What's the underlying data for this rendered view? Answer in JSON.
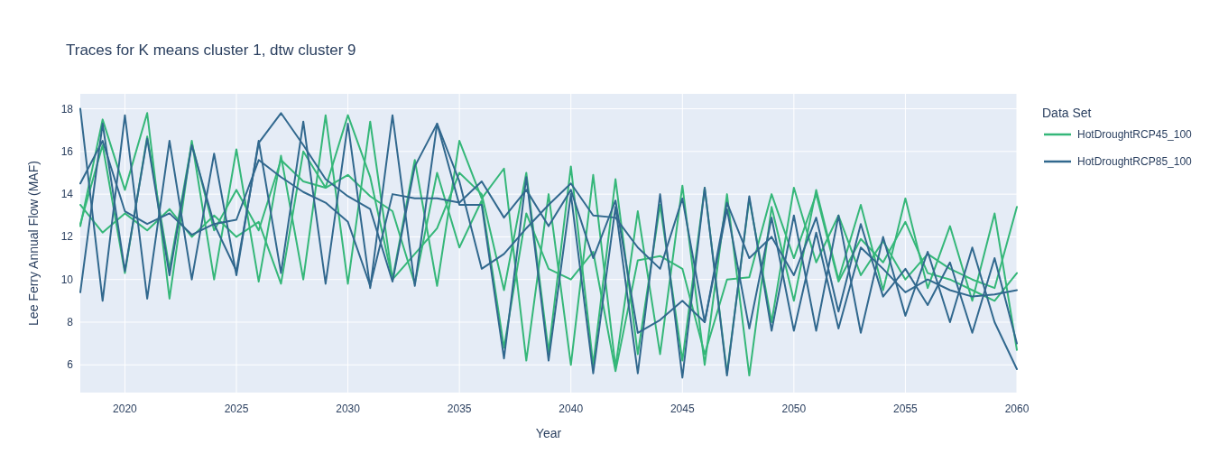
{
  "chart_data": {
    "type": "line",
    "title": "Traces for K means cluster 1, dtw cluster 9",
    "xlabel": "Year",
    "ylabel": "Lee Ferry Annual Flow (MAF)",
    "legend_title": "Data Set",
    "legend": "top right",
    "grid": true,
    "marker": "none",
    "line_style": "solid",
    "x": [
      2018,
      2019,
      2020,
      2021,
      2022,
      2023,
      2024,
      2025,
      2026,
      2027,
      2028,
      2029,
      2030,
      2031,
      2032,
      2033,
      2034,
      2035,
      2036,
      2037,
      2038,
      2039,
      2040,
      2041,
      2042,
      2043,
      2044,
      2045,
      2046,
      2047,
      2048,
      2049,
      2050,
      2051,
      2052,
      2053,
      2054,
      2055,
      2056,
      2057,
      2058,
      2059,
      2060
    ],
    "xlim": [
      2018,
      2060
    ],
    "xticks": [
      2020,
      2025,
      2030,
      2035,
      2040,
      2045,
      2050,
      2055,
      2060
    ],
    "ylim": [
      4.7,
      18.7
    ],
    "yticks": [
      6,
      8,
      10,
      12,
      14,
      16,
      18
    ],
    "series": [
      {
        "name": "HotDroughtRCP45_100",
        "color": "#35b779",
        "values": [
          12.5,
          17.5,
          14.2,
          17.8,
          9.1,
          16.5,
          10.0,
          16.1,
          9.9,
          15.8,
          10.0,
          17.7,
          9.8,
          17.4,
          10.0,
          15.6,
          9.7,
          16.5,
          13.8,
          15.2,
          6.2,
          14.0,
          6.0,
          14.9,
          5.9,
          13.2,
          6.5,
          14.4,
          6.0,
          14.0,
          5.5,
          13.4,
          9.0,
          14.2,
          10.0,
          13.5,
          9.5,
          13.8,
          9.6,
          12.5,
          9.0,
          13.1,
          6.7
        ]
      },
      {
        "color": "#35b779",
        "values": [
          13.5,
          12.2,
          13.1,
          12.3,
          13.3,
          12.0,
          13.0,
          12.0,
          12.7,
          9.8,
          16.0,
          14.3,
          17.7,
          14.8,
          10.0,
          11.2,
          12.4,
          15.0,
          14.0,
          9.5,
          15.0,
          6.6,
          15.3,
          6.0,
          14.7,
          6.5,
          13.5,
          6.2,
          14.3,
          5.6,
          13.8,
          8.0,
          14.3,
          10.8,
          13.0,
          10.2,
          11.8,
          10.0,
          11.2,
          10.5,
          10.0,
          9.6,
          13.4
        ]
      },
      {
        "color": "#35b779",
        "values": [
          12.6,
          16.3,
          10.3,
          16.7,
          10.5,
          16.4,
          12.3,
          14.2,
          12.3,
          15.6,
          14.6,
          14.3,
          14.9,
          13.9,
          13.2,
          9.8,
          15.0,
          11.5,
          13.7,
          6.8,
          13.1,
          10.5,
          10.0,
          11.3,
          5.7,
          10.9,
          11.1,
          10.5,
          6.5,
          10.0,
          10.1,
          14.0,
          11.0,
          14.0,
          9.9,
          11.9,
          10.8,
          12.7,
          10.3,
          10.0,
          9.5,
          9.0,
          10.3
        ]
      },
      {
        "name": "HotDroughtRCP85_100",
        "color": "#31688e",
        "values": [
          18.0,
          9.0,
          17.7,
          9.1,
          16.5,
          10.0,
          15.9,
          10.2,
          16.5,
          10.3,
          17.4,
          9.8,
          17.3,
          9.6,
          17.7,
          9.7,
          17.3,
          13.5,
          13.5,
          6.3,
          14.8,
          6.2,
          14.0,
          5.6,
          13.4,
          5.6,
          14.0,
          5.4,
          14.3,
          5.5,
          13.9,
          7.6,
          13.0,
          7.6,
          13.0,
          7.5,
          12.0,
          8.3,
          11.3,
          8.0,
          11.5,
          8.0,
          5.8
        ]
      },
      {
        "color": "#31688e",
        "values": [
          9.4,
          17.3,
          10.4,
          16.6,
          10.2,
          16.3,
          12.6,
          12.8,
          15.6,
          14.8,
          14.1,
          13.6,
          12.7,
          9.7,
          14.0,
          13.8,
          13.8,
          13.6,
          14.6,
          12.9,
          14.2,
          12.5,
          14.2,
          11.0,
          13.7,
          7.5,
          8.1,
          9.0,
          8.0,
          13.3,
          7.7,
          12.9,
          7.6,
          12.2,
          7.7,
          11.5,
          10.5,
          9.4,
          10.0,
          9.5,
          9.2,
          9.3,
          9.5
        ]
      },
      {
        "color": "#31688e",
        "values": [
          14.5,
          16.5,
          13.2,
          12.6,
          13.1,
          12.1,
          12.6,
          10.4,
          16.4,
          17.8,
          16.3,
          14.7,
          13.9,
          13.3,
          9.9,
          15.3,
          17.3,
          14.6,
          10.5,
          11.2,
          12.4,
          13.5,
          14.5,
          13.0,
          12.9,
          11.5,
          10.5,
          13.8,
          8.0,
          13.6,
          11.0,
          12.0,
          10.2,
          12.9,
          8.5,
          12.6,
          9.2,
          10.5,
          8.8,
          10.8,
          7.5,
          11.0,
          7.0
        ]
      }
    ]
  }
}
